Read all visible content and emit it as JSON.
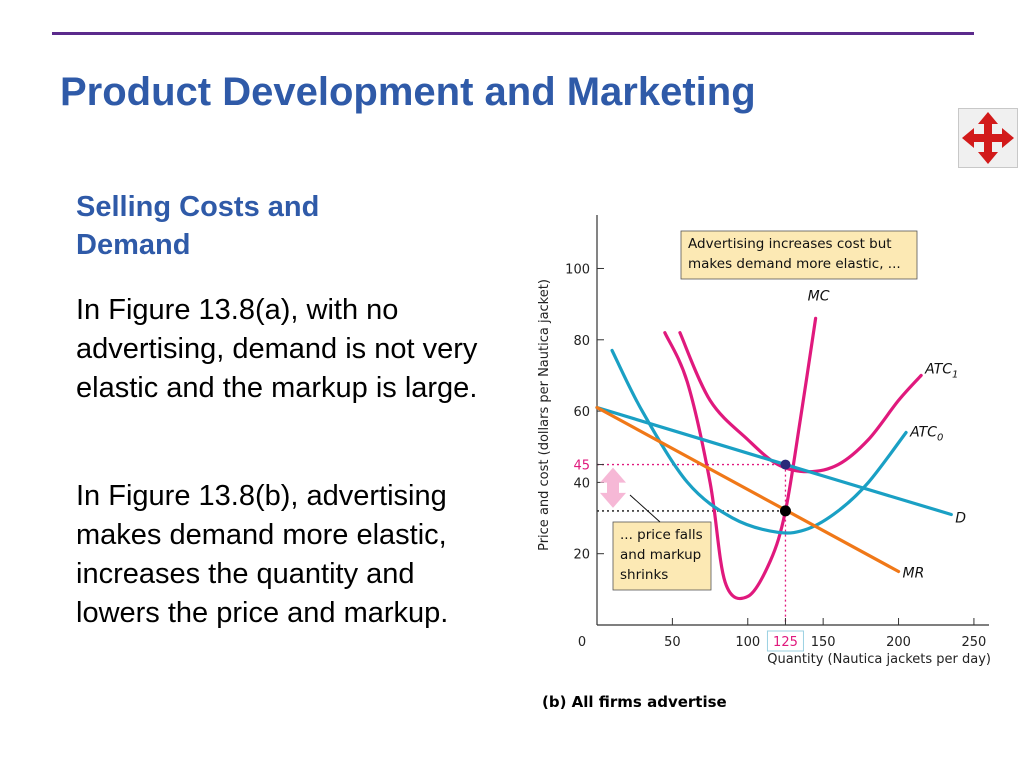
{
  "slide": {
    "title": "Product Development and Marketing",
    "subtitle": "Selling Costs and Demand",
    "paragraphs": [
      "In Figure 13.8(a), with no advertising, demand is not very elastic and the markup is large.",
      "In Figure 13.8(b), advertising makes demand more elastic, increases the quantity and lowers the price and  markup."
    ],
    "nav_icon": "move-arrows-icon",
    "caption": "(b) All firms advertise"
  },
  "colors": {
    "title": "#2f5aa8",
    "rule": "#5b2a8c",
    "mc": "#e0197d",
    "atc": "#1aa0c4",
    "mr": "#f07818",
    "annotation_box": "#fce9b4",
    "highlight": "#e0197d"
  },
  "chart_data": {
    "type": "line",
    "xlabel": "Quantity (Nautica jackets per day)",
    "ylabel": "Price and cost (dollars per Nautica jacket)",
    "xlim": [
      0,
      260
    ],
    "ylim": [
      0,
      115
    ],
    "x_ticks": [
      "0",
      "50",
      "100",
      "125",
      "150",
      "200",
      "250"
    ],
    "y_ticks": [
      "20",
      "40",
      "45",
      "60",
      "80",
      "100"
    ],
    "series": [
      {
        "name": "MC",
        "color": "#e0197d",
        "points": [
          [
            45,
            82
          ],
          [
            60,
            68
          ],
          [
            75,
            40
          ],
          [
            85,
            12
          ],
          [
            100,
            8
          ],
          [
            115,
            18
          ],
          [
            125,
            32
          ],
          [
            135,
            58
          ],
          [
            145,
            86
          ]
        ]
      },
      {
        "name": "ATC",
        "sub": "1",
        "color": "#e0197d",
        "points": [
          [
            55,
            82
          ],
          [
            75,
            63
          ],
          [
            100,
            52
          ],
          [
            120,
            45
          ],
          [
            140,
            43
          ],
          [
            160,
            45
          ],
          [
            180,
            52
          ],
          [
            200,
            63
          ],
          [
            215,
            70
          ]
        ]
      },
      {
        "name": "ATC",
        "sub": "0",
        "color": "#1aa0c4",
        "points": [
          [
            10,
            77
          ],
          [
            30,
            60
          ],
          [
            60,
            40
          ],
          [
            90,
            30
          ],
          [
            120,
            26
          ],
          [
            140,
            27
          ],
          [
            160,
            32
          ],
          [
            180,
            40
          ],
          [
            205,
            54
          ]
        ]
      },
      {
        "name": "D",
        "color": "#1aa0c4",
        "points": [
          [
            0,
            61
          ],
          [
            125,
            45
          ],
          [
            235,
            31
          ]
        ]
      },
      {
        "name": "MR",
        "color": "#f07818",
        "points": [
          [
            0,
            61
          ],
          [
            200,
            15
          ]
        ]
      }
    ],
    "equilibrium_points": [
      {
        "x": 125,
        "y": 45,
        "label": "45"
      },
      {
        "x": 125,
        "y": 32
      }
    ],
    "annotations": [
      "Advertising increases cost but makes demand more elastic, ...",
      "... price falls and markup shrinks"
    ],
    "grid": false,
    "legend": "none"
  }
}
